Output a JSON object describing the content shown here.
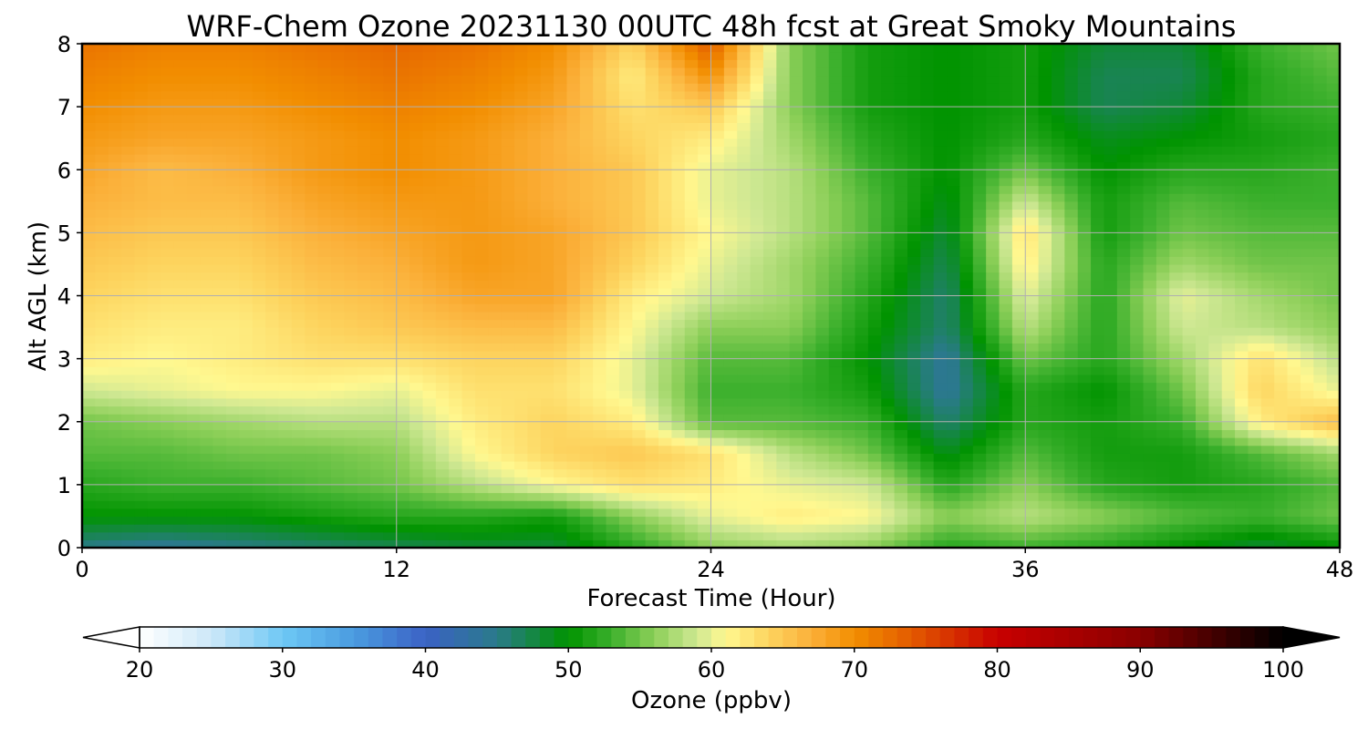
{
  "chart_data": {
    "type": "heatmap",
    "title": "WRF-Chem Ozone  20231130 00UTC 48h fcst at Great Smoky Mountains",
    "xlabel": "Forecast Time (Hour)",
    "ylabel": "Alt AGL (km)",
    "xlim": [
      0,
      48
    ],
    "ylim": [
      0,
      8
    ],
    "xticks": [
      "0",
      "12",
      "24",
      "36",
      "48"
    ],
    "yticks": [
      "0",
      "1",
      "2",
      "3",
      "4",
      "5",
      "6",
      "7",
      "8"
    ],
    "grid": true,
    "x_hours": [
      0,
      3,
      6,
      9,
      12,
      15,
      18,
      21,
      24,
      27,
      30,
      33,
      36,
      39,
      42,
      45,
      48
    ],
    "y_km": [
      0,
      0.5,
      1,
      1.5,
      2,
      2.5,
      3,
      3.5,
      4,
      4.5,
      5,
      5.5,
      6,
      6.5,
      7,
      7.5,
      8
    ],
    "ozone_ppbv": [
      [
        45,
        44,
        45,
        46,
        47,
        48,
        48,
        52,
        56,
        57,
        56,
        52,
        53,
        52,
        50,
        48,
        50
      ],
      [
        50,
        50,
        50,
        51,
        52,
        52,
        51,
        56,
        60,
        62,
        61,
        56,
        58,
        56,
        54,
        53,
        55
      ],
      [
        52,
        53,
        53,
        54,
        55,
        58,
        61,
        63,
        62,
        60,
        59,
        52,
        56,
        52,
        51,
        52,
        54
      ],
      [
        54,
        54,
        55,
        55,
        56,
        61,
        64,
        65,
        63,
        58,
        55,
        49,
        54,
        51,
        51,
        54,
        57
      ],
      [
        55,
        56,
        57,
        58,
        58,
        62,
        64,
        62,
        54,
        54,
        53,
        46,
        52,
        51,
        53,
        62,
        66
      ],
      [
        59,
        60,
        61,
        61,
        60,
        63,
        63,
        60,
        53,
        53,
        51,
        44,
        52,
        50,
        55,
        64,
        60
      ],
      [
        62,
        61,
        62,
        63,
        63,
        64,
        64,
        60,
        54,
        54,
        50,
        44,
        55,
        52,
        57,
        63,
        58
      ],
      [
        63,
        62,
        62,
        64,
        65,
        66,
        66,
        61,
        56,
        56,
        51,
        46,
        58,
        52,
        59,
        58,
        56
      ],
      [
        64,
        63,
        63,
        65,
        66,
        68,
        68,
        62,
        59,
        57,
        52,
        46,
        60,
        52,
        60,
        57,
        55
      ],
      [
        65,
        64,
        64,
        66,
        67,
        69,
        68,
        64,
        60,
        57,
        53,
        47,
        62,
        52,
        57,
        55,
        55
      ],
      [
        66,
        65,
        65,
        67,
        68,
        69,
        68,
        65,
        61,
        58,
        54,
        48,
        63,
        51,
        55,
        54,
        54
      ],
      [
        67,
        66,
        66,
        68,
        69,
        69,
        67,
        65,
        60,
        58,
        54,
        49,
        59,
        51,
        54,
        53,
        53
      ],
      [
        68,
        66,
        67,
        69,
        70,
        69,
        67,
        65,
        60,
        58,
        53,
        50,
        55,
        50,
        52,
        52,
        53
      ],
      [
        69,
        68,
        68,
        69,
        70,
        69,
        67,
        64,
        62,
        57,
        52,
        50,
        52,
        49,
        50,
        51,
        52
      ],
      [
        70,
        69,
        69,
        70,
        71,
        70,
        68,
        63,
        65,
        56,
        51,
        50,
        51,
        47,
        48,
        52,
        53
      ],
      [
        71,
        70,
        70,
        71,
        72,
        71,
        69,
        62,
        70,
        56,
        51,
        50,
        51,
        47,
        47,
        52,
        54
      ],
      [
        72,
        71,
        71,
        72,
        73,
        72,
        70,
        64,
        74,
        56,
        51,
        50,
        51,
        48,
        48,
        53,
        55
      ]
    ],
    "colorbar": {
      "label": "Ozone  (ppbv)",
      "min": 20,
      "max": 100,
      "ticks": [
        "20",
        "30",
        "40",
        "50",
        "60",
        "70",
        "80",
        "90",
        "100"
      ],
      "extend": "both",
      "colors": [
        [
          20,
          "#ffffff"
        ],
        [
          25,
          "#cde8f8"
        ],
        [
          30,
          "#6ec8f5"
        ],
        [
          35,
          "#4a9ce0"
        ],
        [
          40,
          "#3b62c5"
        ],
        [
          45,
          "#2a7a8a"
        ],
        [
          50,
          "#009300"
        ],
        [
          53,
          "#3bb02c"
        ],
        [
          56,
          "#8ccf58"
        ],
        [
          59,
          "#cfe893"
        ],
        [
          61,
          "#fff890"
        ],
        [
          64,
          "#fdd45f"
        ],
        [
          67,
          "#fbb03a"
        ],
        [
          70,
          "#f28e00"
        ],
        [
          74,
          "#e35b00"
        ],
        [
          80,
          "#c80000"
        ],
        [
          90,
          "#8a0000"
        ],
        [
          100,
          "#000000"
        ]
      ]
    }
  }
}
